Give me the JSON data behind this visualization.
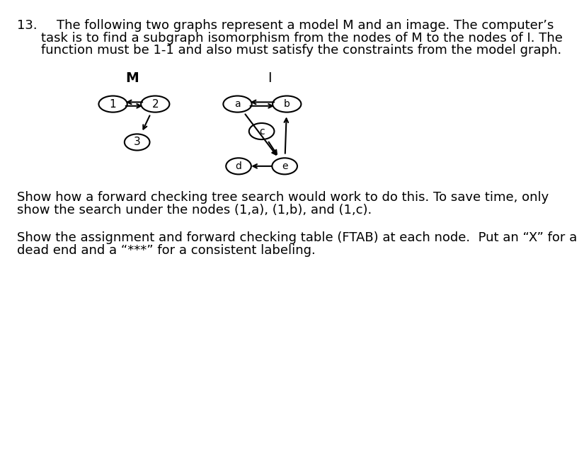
{
  "title_number": "13.",
  "line1": "The following two graphs represent a model M and an image. The computer’s",
  "line2": "task is to find a subgraph isomorphism from the nodes of M to the nodes of I. The",
  "line3": "function must be 1-1 and also must satisfy the constraints from the model graph.",
  "graph_M_label": "M",
  "graph_I_label": "I",
  "para2_line1": "Show how a forward checking tree search would work to do this. To save time, only",
  "para2_line2": "show the search under the nodes (1,a), (1,b), and (1,c).",
  "para3_line1": "Show the assignment and forward checking table (FTAB) at each node.  Put an “X” for a",
  "para3_line2": "dead end and a “***” for a consistent labeling.",
  "bg_color": "#ffffff",
  "text_color": "#000000",
  "font_size_body": 13.0,
  "font_size_label": 13.5
}
